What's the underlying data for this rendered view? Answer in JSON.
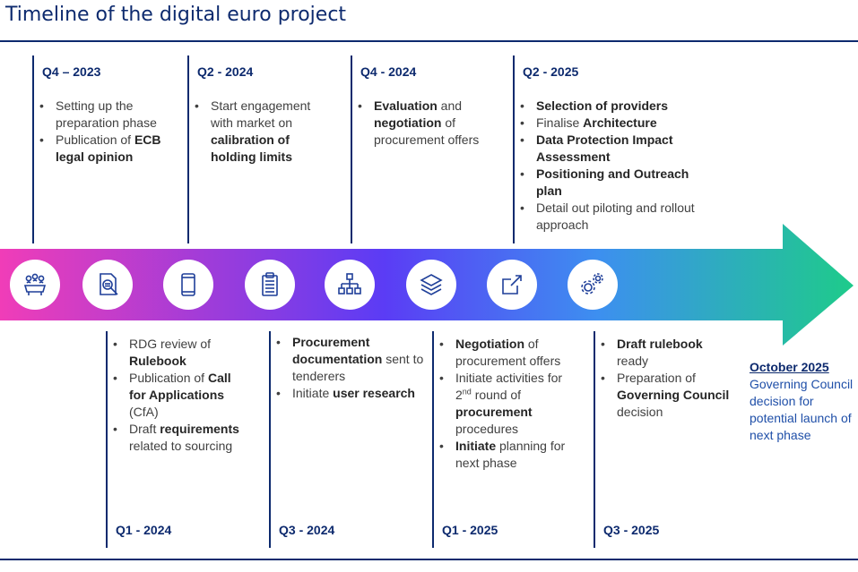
{
  "title": "Timeline of the digital euro project",
  "colors": {
    "navy": "#0d2a6e",
    "arrow_start": "#f03db8",
    "arrow_mid": "#5b3cf5",
    "arrow_end": "#1ecb8a"
  },
  "top_phases": [
    {
      "quarter": "Q4 – 2023",
      "items": [
        [
          {
            "t": "Setting up the preparation phase"
          }
        ],
        [
          {
            "t": "Publication of "
          },
          {
            "t": "ECB legal opinion",
            "b": true
          }
        ]
      ]
    },
    {
      "quarter": "Q2 - 2024",
      "items": [
        [
          {
            "t": "Start engagement with market on "
          },
          {
            "t": "calibration of holding limits",
            "b": true
          }
        ]
      ]
    },
    {
      "quarter": "Q4 - 2024",
      "items": [
        [
          {
            "t": "Evaluation",
            "b": true
          },
          {
            "t": " and "
          },
          {
            "t": "negotiation",
            "b": true
          },
          {
            "t": " of procurement offers"
          }
        ]
      ]
    },
    {
      "quarter": "Q2 - 2025",
      "items": [
        [
          {
            "t": "Selection of providers",
            "b": true
          }
        ],
        [
          {
            "t": "Finalise "
          },
          {
            "t": "Architecture",
            "b": true
          }
        ],
        [
          {
            "t": "Data Protection Impact Assessment",
            "b": true
          }
        ],
        [
          {
            "t": "Positioning and Outreach plan",
            "b": true
          }
        ],
        [
          {
            "t": "Detail out piloting and rollout approach"
          }
        ]
      ]
    }
  ],
  "bottom_phases": [
    {
      "quarter": "Q1 - 2024",
      "items": [
        [
          {
            "t": "RDG review  of "
          },
          {
            "t": "Rulebook",
            "b": true
          }
        ],
        [
          {
            "t": "Publication of "
          },
          {
            "t": "Call for Applications",
            "b": true
          },
          {
            "t": " (CfA)"
          }
        ],
        [
          {
            "t": "Draft "
          },
          {
            "t": "requirements",
            "b": true
          },
          {
            "t": " related to sourcing"
          }
        ]
      ]
    },
    {
      "quarter": "Q3 - 2024",
      "items": [
        [
          {
            "t": "Procurement documentation",
            "b": true
          },
          {
            "t": " sent to tenderers"
          }
        ],
        [
          {
            "t": "Initiate "
          },
          {
            "t": "user research",
            "b": true
          }
        ]
      ]
    },
    {
      "quarter": "Q1 - 2025",
      "items": [
        [
          {
            "t": "Negotiation",
            "b": true
          },
          {
            "t": " of procurement offers"
          }
        ],
        [
          {
            "t": "Initiate activities for 2"
          },
          {
            "t": "nd",
            "sup": true
          },
          {
            "t": " round of "
          },
          {
            "t": "procurement",
            "b": true
          },
          {
            "t": " procedures"
          }
        ],
        [
          {
            "t": "Initiate",
            "b": true
          },
          {
            "t": " planning for next phase"
          }
        ]
      ]
    },
    {
      "quarter": "Q3 - 2025",
      "items": [
        [
          {
            "t": "Draft rulebook",
            "b": true
          },
          {
            "t": " ready"
          }
        ],
        [
          {
            "t": "Preparation of "
          },
          {
            "t": "Governing Council",
            "b": true
          },
          {
            "t": " decision"
          }
        ]
      ]
    }
  ],
  "final_milestone": {
    "date": "October 2025",
    "text": "Governing Council decision for potential launch of next phase"
  },
  "icons": [
    "meeting-icon",
    "document-search-icon",
    "tablet-icon",
    "checklist-icon",
    "org-chart-icon",
    "layers-icon",
    "external-link-icon",
    "gears-icon"
  ]
}
